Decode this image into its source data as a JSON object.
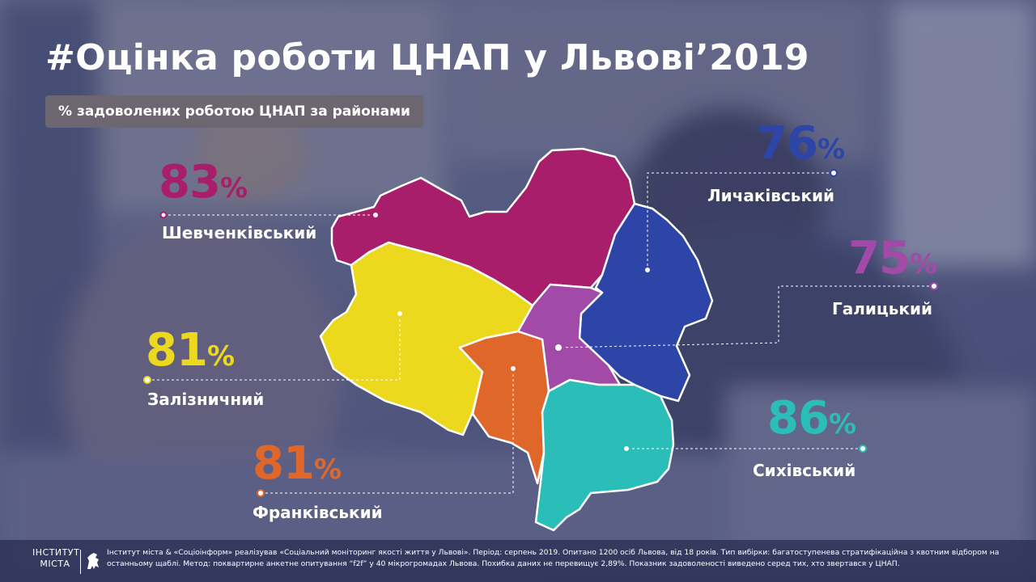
{
  "title": "#Оцінка роботи ЦНАП у Львові’2019",
  "subtitle": "% задоволених  роботою  ЦНАП  за  районами",
  "districts": [
    {
      "name": "Шевченківський",
      "value": "83",
      "sign": "%",
      "color": "#a81e6a"
    },
    {
      "name": "Личаківський",
      "value": "76",
      "sign": "%",
      "color": "#2e45a8"
    },
    {
      "name": "Галицький",
      "value": "75",
      "sign": "%",
      "color": "#a24aa8"
    },
    {
      "name": "Залізничний",
      "value": "81",
      "sign": "%",
      "color": "#ecd91e"
    },
    {
      "name": "Франківський",
      "value": "81",
      "sign": "%",
      "color": "#e0672a"
    },
    {
      "name": "Сихівський",
      "value": "86",
      "sign": "%",
      "color": "#2bbdb8"
    }
  ],
  "logo": {
    "line1": "ІНСТИТУТ",
    "line2": "МІСТА"
  },
  "footnote": "Інститут міста & «Соціоінформ» реалізував «Соціальний моніторинг якості життя у Львові».  Період: серпень 2019.  Опитано 1200 осіб Львова, від 18 років.  Тип вибірки: багатоступенева стратифікаційна з квотним відбором на останньому щаблі. Метод: поквартирне анкетне опитування “f2f” у 40 мікрогромадах Львова. Похибка даних не перевищує 2,89%. Показник задоволеності виведено серед тих, хто звертався у ЦНАП."
}
